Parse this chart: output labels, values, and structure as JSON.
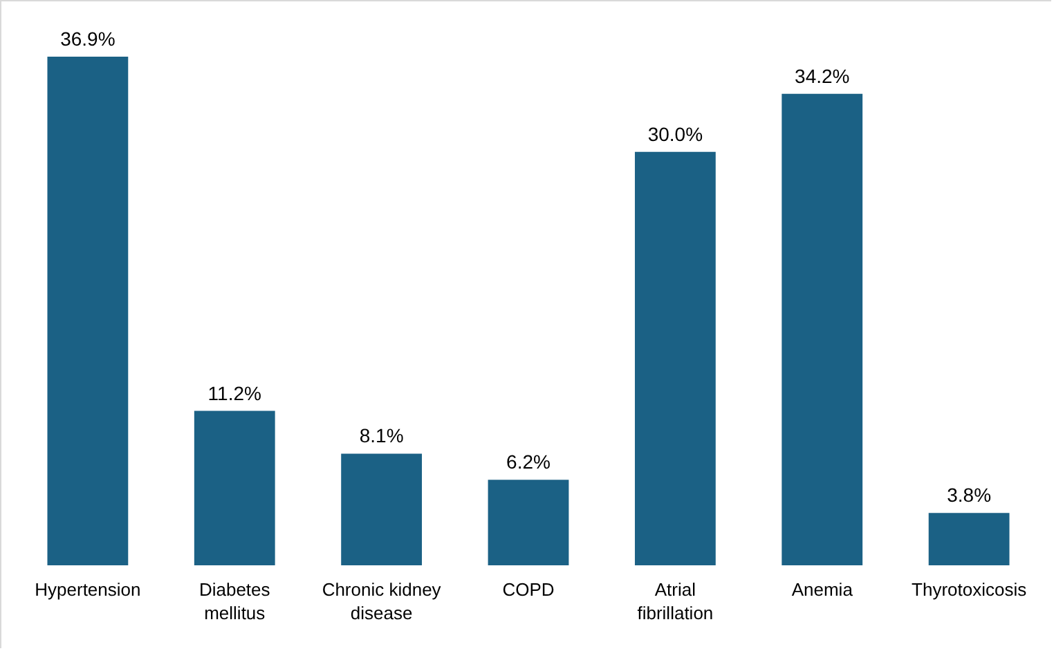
{
  "chart_data": {
    "type": "bar",
    "categories": [
      "Hypertension",
      "Diabetes mellitus",
      "Chronic kidney disease",
      "COPD",
      "Atrial fibrillation",
      "Anemia",
      "Thyrotoxicosis"
    ],
    "values": [
      36.9,
      11.2,
      8.1,
      6.2,
      30.0,
      34.2,
      3.8
    ],
    "value_labels": [
      "36.9%",
      "11.2%",
      "8.1%",
      "6.2%",
      "30.0%",
      "34.2%",
      "3.8%"
    ],
    "color": "#1b6185"
  }
}
